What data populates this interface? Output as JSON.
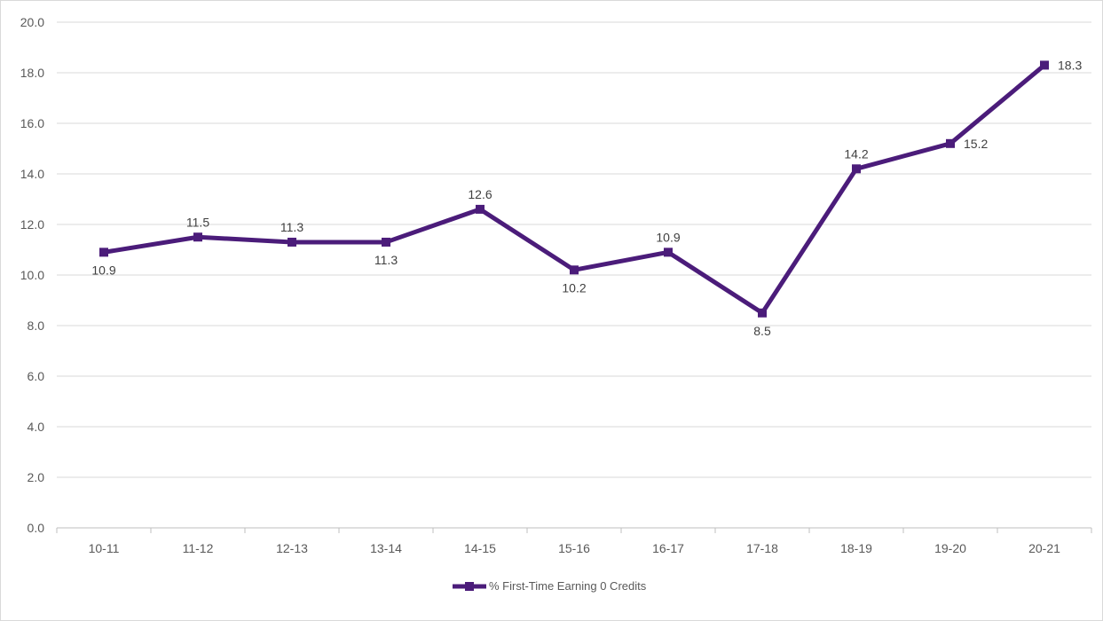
{
  "chart_data": {
    "type": "line",
    "title": "",
    "xlabel": "",
    "ylabel": "",
    "categories": [
      "10-11",
      "11-12",
      "12-13",
      "13-14",
      "14-15",
      "15-16",
      "16-17",
      "17-18",
      "18-19",
      "19-20",
      "20-21"
    ],
    "series": [
      {
        "name": "% First-Time Earning 0 Credits",
        "values": [
          10.9,
          11.5,
          11.3,
          11.3,
          12.6,
          10.2,
          10.9,
          8.5,
          14.2,
          15.2,
          18.3
        ],
        "labels": [
          "10.9",
          "11.5",
          "11.3",
          "11.3",
          "12.6",
          "10.2",
          "10.9",
          "8.5",
          "14.2",
          "15.2",
          "18.3"
        ],
        "color": "#4b1c7a",
        "marker": "square"
      }
    ],
    "ylim": [
      0,
      20
    ],
    "yticks": [
      "0.0",
      "2.0",
      "4.0",
      "6.0",
      "8.0",
      "10.0",
      "12.0",
      "14.0",
      "16.0",
      "18.0",
      "20.0"
    ],
    "grid": true,
    "legend_position": "bottom"
  }
}
